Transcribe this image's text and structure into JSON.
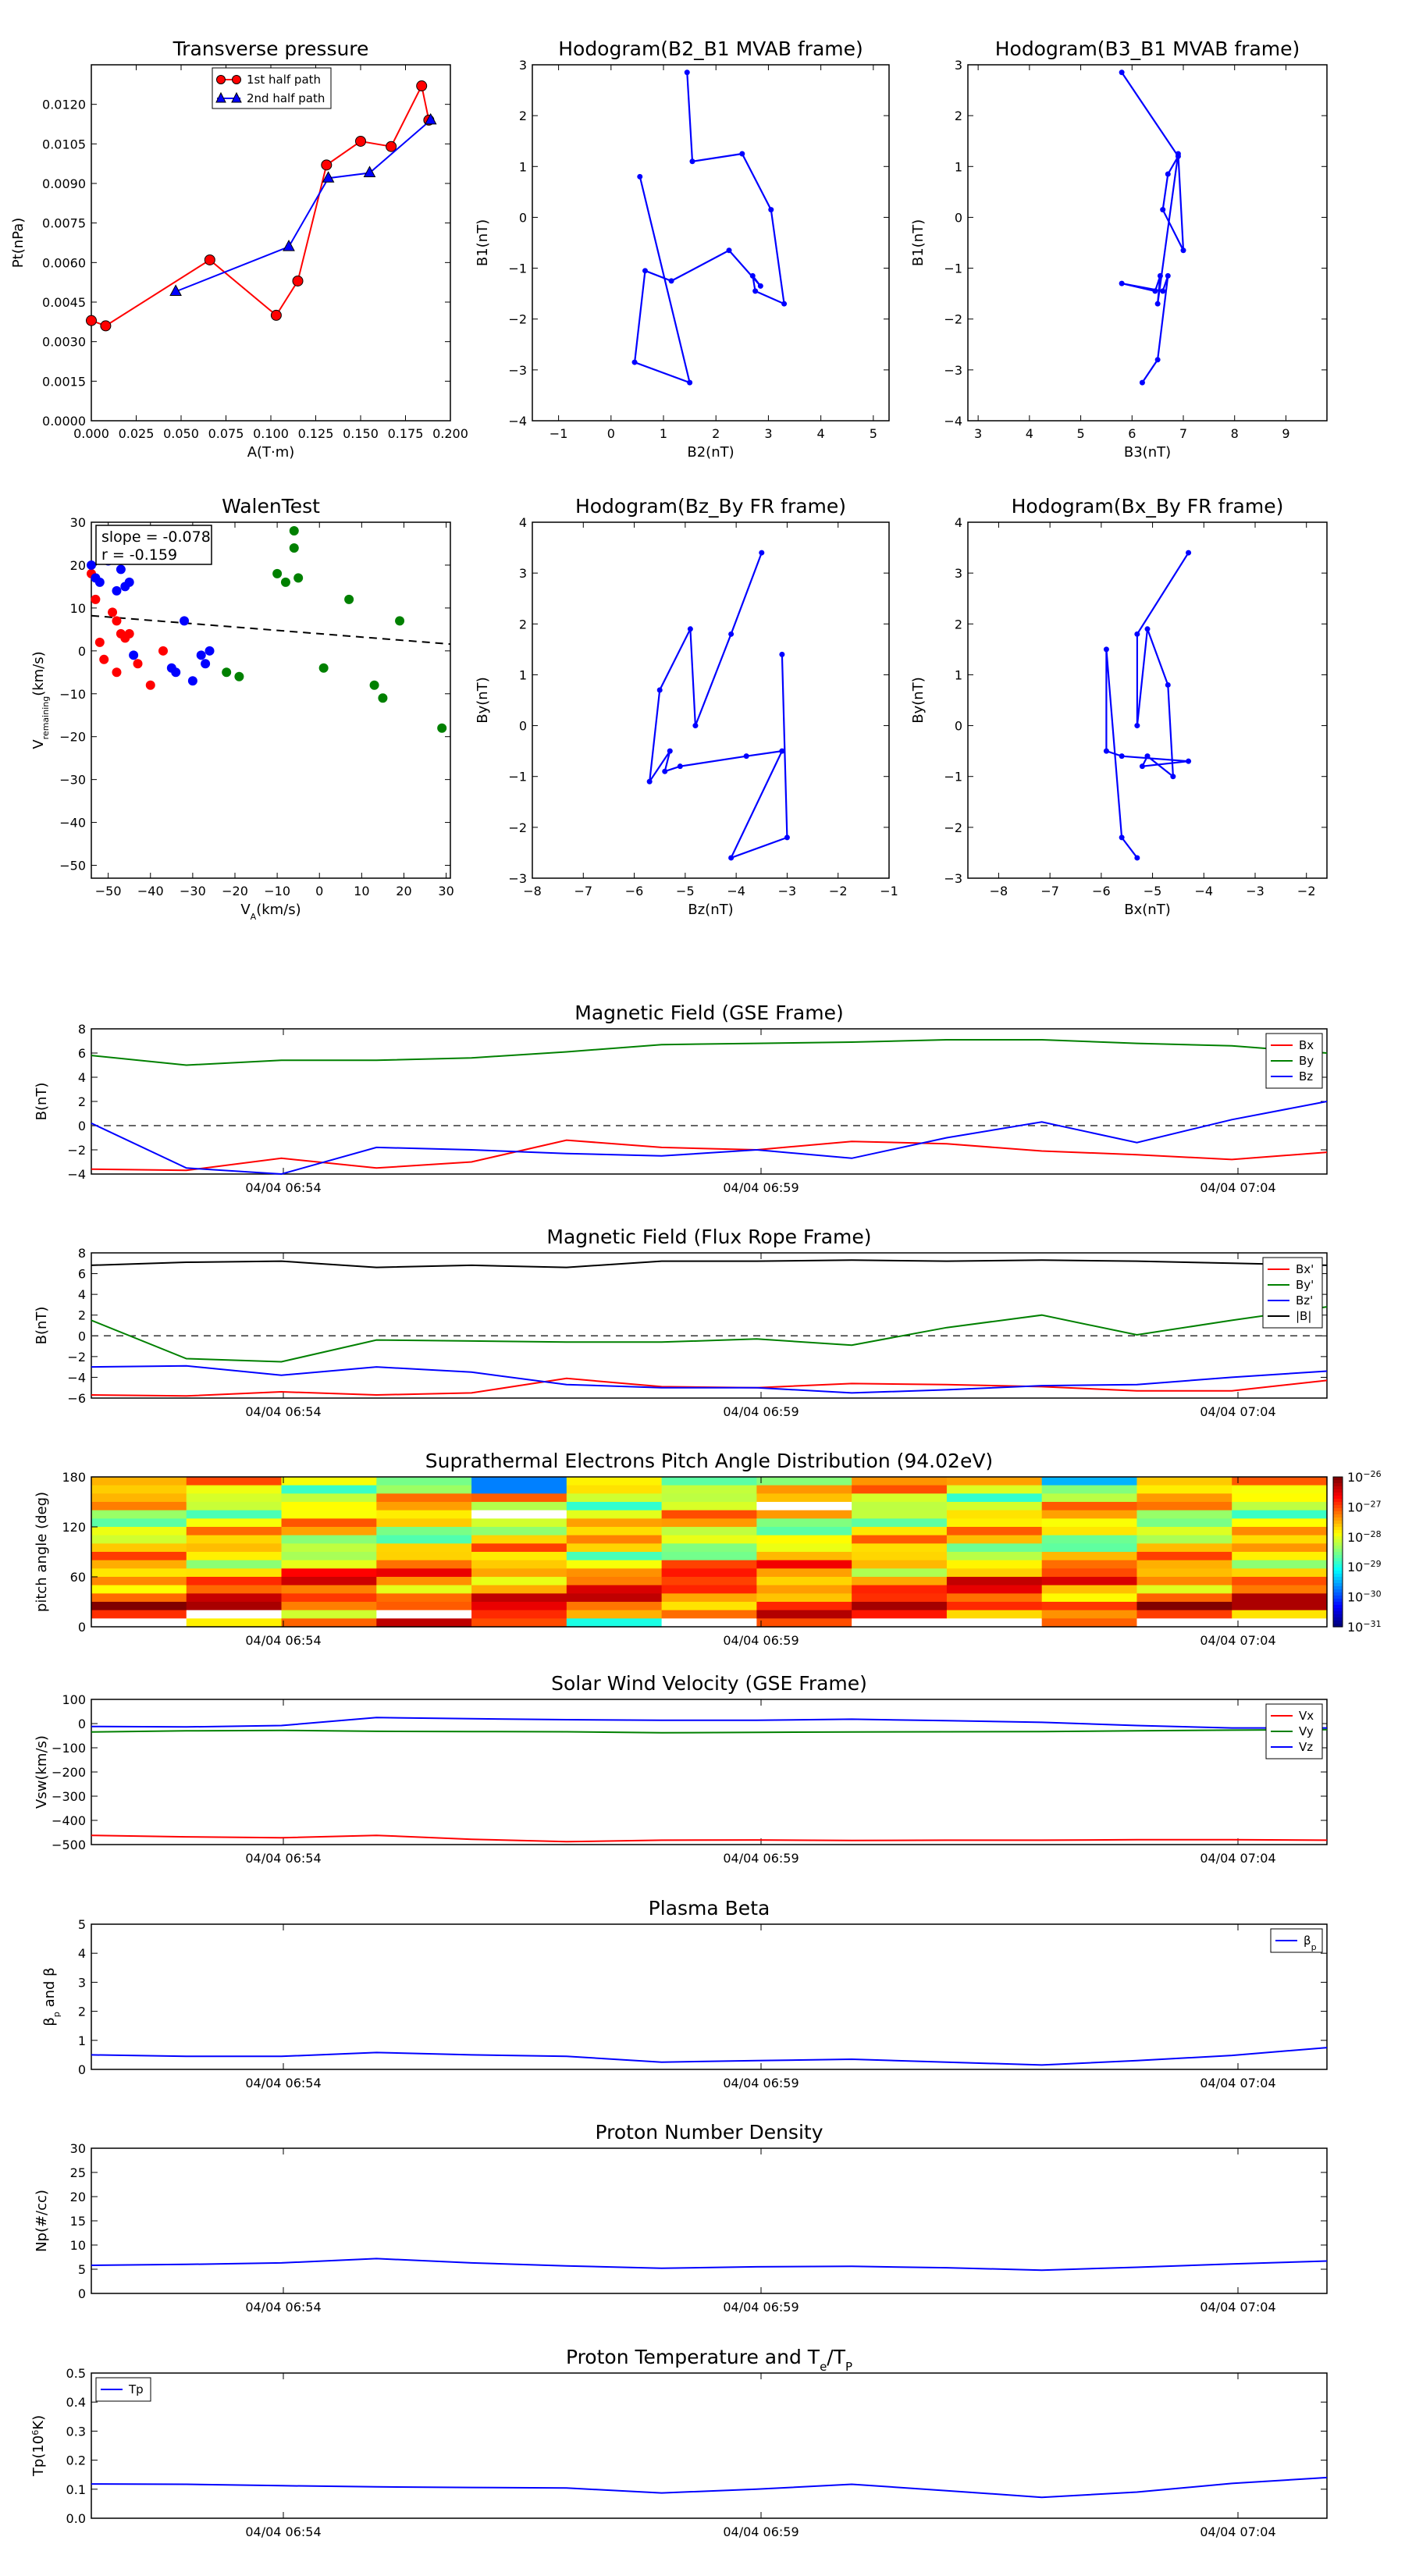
{
  "page": {
    "background": "#ffffff"
  },
  "panels": {
    "tp": {
      "title": "Transverse pressure",
      "xlabel": "A(T·m)",
      "ylabel": "Pt(nPa)",
      "xticks": [
        "0.000",
        "0.025",
        "0.050",
        "0.075",
        "0.100",
        "0.125",
        "0.150",
        "0.175",
        "0.200"
      ],
      "yticks": [
        "0.0000",
        "0.0015",
        "0.0030",
        "0.0045",
        "0.0060",
        "0.0075",
        "0.0090",
        "0.0105",
        "0.0120"
      ],
      "legend": [
        "1st half path",
        "2nd half path"
      ]
    },
    "h1": {
      "title": "Hodogram(B2_B1 MVAB frame)",
      "xlabel": "B2(nT)",
      "ylabel": "B1(nT)",
      "xticks": [
        "−1",
        "0",
        "1",
        "2",
        "3",
        "4",
        "5"
      ],
      "yticks": [
        "−4",
        "−3",
        "−2",
        "−1",
        "0",
        "1",
        "2",
        "3"
      ]
    },
    "h2": {
      "title": "Hodogram(B3_B1 MVAB frame)",
      "xlabel": "B3(nT)",
      "ylabel": "B1(nT)",
      "xticks": [
        "3",
        "4",
        "5",
        "6",
        "7",
        "8",
        "9"
      ],
      "yticks": [
        "−4",
        "−3",
        "−2",
        "−1",
        "0",
        "1",
        "2",
        "3"
      ]
    },
    "wt": {
      "title": "WalenTest",
      "xlabel": "V_A(km/s)",
      "ylabel": "V_remaining(km/s)",
      "xticks": [
        "−50",
        "−40",
        "−30",
        "−20",
        "−10",
        "0",
        "10",
        "20",
        "30"
      ],
      "yticks": [
        "−50",
        "−40",
        "−30",
        "−20",
        "−10",
        "0",
        "10",
        "20",
        "30"
      ],
      "annotation": [
        "slope = -0.078",
        "r = -0.159"
      ]
    },
    "h3": {
      "title": "Hodogram(Bz_By FR frame)",
      "xlabel": "Bz(nT)",
      "ylabel": "By(nT)",
      "xticks": [
        "−8",
        "−7",
        "−6",
        "−5",
        "−4",
        "−3",
        "−2",
        "−1"
      ],
      "yticks": [
        "−3",
        "−2",
        "−1",
        "0",
        "1",
        "2",
        "3",
        "4"
      ]
    },
    "h4": {
      "title": "Hodogram(Bx_By FR frame)",
      "xlabel": "Bx(nT)",
      "ylabel": "By(nT)",
      "xticks": [
        "−8",
        "−7",
        "−6",
        "−5",
        "−4",
        "−3",
        "−2"
      ],
      "yticks": [
        "−3",
        "−2",
        "−1",
        "0",
        "1",
        "2",
        "3",
        "4"
      ]
    },
    "ts1": {
      "title": "Magnetic Field (GSE Frame)",
      "ylabel": "B(nT)",
      "yticks": [
        "−4",
        "−2",
        "0",
        "2",
        "4",
        "6",
        "8"
      ],
      "legend": [
        "Bx",
        "By",
        "Bz"
      ]
    },
    "ts2": {
      "title": "Magnetic Field (Flux Rope Frame)",
      "ylabel": "B(nT)",
      "yticks": [
        "−6",
        "−4",
        "−2",
        "0",
        "2",
        "4",
        "6",
        "8"
      ],
      "legend": [
        "Bx'",
        "By'",
        "Bz'",
        "|B|"
      ]
    },
    "ts3": {
      "title": "Suprathermal Electrons Pitch Angle Distribution (94.02eV)",
      "ylabel": "pitch angle (deg)",
      "yticks": [
        "0",
        "60",
        "120",
        "180"
      ],
      "colorbar": [
        "10^-26",
        "10^-27",
        "10^-28",
        "10^-29",
        "10^-30",
        "10^-31"
      ]
    },
    "ts4": {
      "title": "Solar Wind Velocity (GSE Frame)",
      "ylabel": "Vsw(km/s)",
      "yticks": [
        "−500",
        "−400",
        "−300",
        "−200",
        "−100",
        "0",
        "100"
      ],
      "legend": [
        "Vx",
        "Vy",
        "Vz"
      ]
    },
    "ts5": {
      "title": "Plasma Beta",
      "ylabel": "β_p and β",
      "yticks": [
        "0",
        "1",
        "2",
        "3",
        "4",
        "5"
      ],
      "legend": [
        "β_p"
      ]
    },
    "ts6": {
      "title": "Proton Number Density",
      "ylabel": "Np(#/cc)",
      "yticks": [
        "0",
        "5",
        "10",
        "15",
        "20",
        "25",
        "30"
      ]
    },
    "ts7": {
      "title": "Proton Temperature and T_e/T_p",
      "ylabel": "Tp(10^6K)",
      "yticks": [
        "0.0",
        "0.1",
        "0.2",
        "0.3",
        "0.4",
        "0.5"
      ],
      "legend": [
        "Tp"
      ]
    },
    "time_ticks": [
      "04/04 06:54",
      "04/04 06:59",
      "04/04 07:04"
    ]
  },
  "colors": {
    "red": "#ff0000",
    "green": "#008000",
    "blue": "#0000ff",
    "black": "#000000",
    "dash": "#333333"
  },
  "chart_data": [
    {
      "type": "line",
      "title": "Transverse pressure",
      "xlabel": "A(T·m)",
      "ylabel": "Pt(nPa)",
      "xlim": [
        0.0,
        0.2
      ],
      "ylim": [
        0.0,
        0.0135
      ],
      "series": [
        {
          "name": "1st half path",
          "color": "#ff0000",
          "marker": "circle",
          "x": [
            0.0,
            0.008,
            0.066,
            0.103,
            0.115,
            0.131,
            0.15,
            0.167,
            0.184,
            0.188
          ],
          "y": [
            0.0038,
            0.0036,
            0.0061,
            0.004,
            0.0053,
            0.0097,
            0.0106,
            0.0104,
            0.0127,
            0.0114
          ]
        },
        {
          "name": "2nd half path",
          "color": "#0000ff",
          "marker": "triangle",
          "x": [
            0.047,
            0.11,
            0.132,
            0.155,
            0.189
          ],
          "y": [
            0.0049,
            0.0066,
            0.0092,
            0.0094,
            0.0114
          ]
        }
      ],
      "legend_position": "top-center"
    },
    {
      "type": "line",
      "title": "Hodogram(B2_B1 MVAB frame)",
      "xlabel": "B2(nT)",
      "ylabel": "B1(nT)",
      "xlim": [
        -1.5,
        5.3
      ],
      "ylim": [
        -4,
        3
      ],
      "series": [
        {
          "color": "#0000ff",
          "x": [
            1.45,
            1.55,
            2.5,
            3.05,
            3.3,
            2.75,
            2.7,
            2.85,
            2.25,
            1.15,
            0.65,
            0.45,
            1.5,
            0.55
          ],
          "y": [
            2.85,
            1.1,
            1.25,
            0.15,
            -1.7,
            -1.45,
            -1.15,
            -1.35,
            -0.65,
            -1.25,
            -1.05,
            -2.85,
            -3.25,
            0.8
          ]
        }
      ]
    },
    {
      "type": "line",
      "title": "Hodogram(B3_B1 MVAB frame)",
      "xlabel": "B3(nT)",
      "ylabel": "B1(nT)",
      "xlim": [
        2.8,
        9.8
      ],
      "ylim": [
        -4,
        3
      ],
      "series": [
        {
          "color": "#0000ff",
          "x": [
            5.8,
            6.9,
            6.7,
            6.6,
            7.0,
            6.9,
            6.5,
            6.55,
            6.45,
            5.8,
            6.6,
            6.7,
            6.5,
            6.2
          ],
          "y": [
            2.85,
            1.2,
            0.85,
            0.15,
            -0.65,
            1.25,
            -1.7,
            -1.15,
            -1.45,
            -1.3,
            -1.45,
            -1.15,
            -2.8,
            -3.25
          ]
        }
      ]
    },
    {
      "type": "scatter",
      "title": "WalenTest",
      "xlabel": "V_A(km/s)",
      "ylabel": "V_remaining(km/s)",
      "xlim": [
        -54,
        31
      ],
      "ylim": [
        -53,
        30
      ],
      "series": [
        {
          "color": "#ff0000",
          "x": [
            -54,
            -53,
            -52,
            -51,
            -49,
            -48,
            -48,
            -47,
            -46,
            -45,
            -43,
            -40,
            -37
          ],
          "y": [
            18,
            12,
            2,
            -2,
            9,
            7,
            -5,
            4,
            3,
            4,
            -3,
            -8,
            0
          ]
        },
        {
          "color": "#0000ff",
          "x": [
            -54,
            -53,
            -52,
            -50,
            -48,
            -47,
            -46,
            -45,
            -44,
            -35,
            -34,
            -32,
            -30,
            -28,
            -27,
            -26
          ],
          "y": [
            20,
            17,
            16,
            21,
            14,
            19,
            15,
            16,
            -1,
            -4,
            -5,
            7,
            -7,
            -1,
            -3,
            0
          ]
        },
        {
          "color": "#008000",
          "x": [
            -22,
            -19,
            -10,
            -8,
            -6,
            -6,
            -5,
            -4,
            1,
            7,
            13,
            15,
            19,
            29
          ],
          "y": [
            -5,
            -6,
            18,
            16,
            24,
            28,
            17,
            31,
            -4,
            12,
            -8,
            -11,
            7,
            -18
          ]
        }
      ],
      "fit_line": {
        "slope": -0.078,
        "intercept": 4.0,
        "style": "dashed"
      },
      "annotation": "slope = -0.078, r = -0.159"
    },
    {
      "type": "line",
      "title": "Hodogram(Bz_By FR frame)",
      "xlabel": "Bz(nT)",
      "ylabel": "By(nT)",
      "xlim": [
        -8,
        -1
      ],
      "ylim": [
        -3,
        4
      ],
      "series": [
        {
          "color": "#0000ff",
          "x": [
            -3.5,
            -4.1,
            -4.8,
            -4.9,
            -5.5,
            -5.7,
            -5.3,
            -5.4,
            -5.1,
            -3.8,
            -3.1,
            -4.1,
            -3.0,
            -3.1
          ],
          "y": [
            3.4,
            1.8,
            0.0,
            1.9,
            0.7,
            -1.1,
            -0.5,
            -0.9,
            -0.8,
            -0.6,
            -0.5,
            -2.6,
            -2.2,
            1.4
          ]
        }
      ]
    },
    {
      "type": "line",
      "title": "Hodogram(Bx_By FR frame)",
      "xlabel": "Bx(nT)",
      "ylabel": "By(nT)",
      "xlim": [
        -8.6,
        -1.6
      ],
      "ylim": [
        -3,
        4
      ],
      "series": [
        {
          "color": "#0000ff",
          "x": [
            -4.3,
            -5.3,
            -5.3,
            -5.1,
            -4.7,
            -4.6,
            -5.1,
            -5.2,
            -4.3,
            -5.6,
            -5.9,
            -5.9,
            -5.6,
            -5.3
          ],
          "y": [
            3.4,
            1.8,
            0.0,
            1.9,
            0.8,
            -1.0,
            -0.6,
            -0.8,
            -0.7,
            -0.6,
            -0.5,
            1.5,
            -2.2,
            -2.6
          ]
        }
      ]
    },
    {
      "type": "line",
      "title": "Magnetic Field (GSE Frame)",
      "ylabel": "B(nT)",
      "xlim": [
        0,
        13
      ],
      "ylim": [
        -4,
        8
      ],
      "categories": [
        "04/04 06:54",
        "04/04 06:59",
        "04/04 07:04"
      ],
      "x": [
        0,
        1,
        2,
        3,
        4,
        5,
        6,
        7,
        8,
        9,
        10,
        11,
        12,
        13
      ],
      "series": [
        {
          "name": "Bx",
          "color": "#ff0000",
          "values": [
            -3.6,
            -3.7,
            -2.7,
            -3.5,
            -3.0,
            -1.2,
            -1.8,
            -2.0,
            -1.3,
            -1.5,
            -2.1,
            -2.4,
            -2.8,
            -2.2
          ]
        },
        {
          "name": "By",
          "color": "#008000",
          "values": [
            5.8,
            5.0,
            5.4,
            5.4,
            5.6,
            6.1,
            6.7,
            6.8,
            6.9,
            7.1,
            7.1,
            6.8,
            6.6,
            6.0
          ]
        },
        {
          "name": "Bz",
          "color": "#0000ff",
          "values": [
            0.2,
            -3.5,
            -4.0,
            -1.8,
            -2.0,
            -2.3,
            -2.5,
            -2.0,
            -2.7,
            -1.0,
            0.3,
            -1.4,
            0.5,
            2.0
          ]
        }
      ],
      "zero_line": "dashed",
      "legend_position": "top-right"
    },
    {
      "type": "line",
      "title": "Magnetic Field (Flux Rope Frame)",
      "ylabel": "B(nT)",
      "xlim": [
        0,
        13
      ],
      "ylim": [
        -6,
        8
      ],
      "categories": [
        "04/04 06:54",
        "04/04 06:59",
        "04/04 07:04"
      ],
      "x": [
        0,
        1,
        2,
        3,
        4,
        5,
        6,
        7,
        8,
        9,
        10,
        11,
        12,
        13
      ],
      "series": [
        {
          "name": "Bx'",
          "color": "#ff0000",
          "values": [
            -5.7,
            -5.8,
            -5.4,
            -5.7,
            -5.5,
            -4.1,
            -4.9,
            -5.0,
            -4.6,
            -4.7,
            -4.9,
            -5.3,
            -5.3,
            -4.3
          ]
        },
        {
          "name": "By'",
          "color": "#008000",
          "values": [
            1.5,
            -2.2,
            -2.5,
            -0.4,
            -0.5,
            -0.6,
            -0.6,
            -0.3,
            -0.9,
            0.8,
            2.0,
            0.1,
            1.5,
            2.8
          ]
        },
        {
          "name": "Bz'",
          "color": "#0000ff",
          "values": [
            -3.0,
            -2.9,
            -3.8,
            -3.0,
            -3.5,
            -4.7,
            -5.0,
            -5.0,
            -5.5,
            -5.2,
            -4.8,
            -4.7,
            -4.0,
            -3.4
          ]
        },
        {
          "name": "|B|",
          "color": "#000000",
          "values": [
            6.8,
            7.1,
            7.2,
            6.6,
            6.8,
            6.6,
            7.2,
            7.2,
            7.3,
            7.2,
            7.3,
            7.2,
            7.0,
            6.8
          ]
        }
      ],
      "zero_line": "dashed",
      "legend_position": "top-right"
    },
    {
      "type": "heatmap",
      "title": "Suprathermal Electrons Pitch Angle Distribution (94.02eV)",
      "ylabel": "pitch angle (deg)",
      "ylim": [
        0,
        180
      ],
      "colorbar_range": [
        "10^-31",
        "10^-26"
      ],
      "columns": 13,
      "rows": 18,
      "color_scale": "jet"
    },
    {
      "type": "line",
      "title": "Solar Wind Velocity (GSE Frame)",
      "ylabel": "Vsw(km/s)",
      "xlim": [
        0,
        13
      ],
      "ylim": [
        -500,
        100
      ],
      "categories": [
        "04/04 06:54",
        "04/04 06:59",
        "04/04 07:04"
      ],
      "x": [
        0,
        1,
        2,
        3,
        4,
        5,
        6,
        7,
        8,
        9,
        10,
        11,
        12,
        13
      ],
      "series": [
        {
          "name": "Vx",
          "color": "#ff0000",
          "values": [
            -462,
            -468,
            -472,
            -462,
            -478,
            -488,
            -482,
            -481,
            -483,
            -482,
            -482,
            -480,
            -480,
            -482
          ]
        },
        {
          "name": "Vy",
          "color": "#008000",
          "values": [
            -35,
            -30,
            -28,
            -32,
            -33,
            -34,
            -38,
            -36,
            -35,
            -34,
            -33,
            -30,
            -27,
            -25
          ]
        },
        {
          "name": "Vz",
          "color": "#0000ff",
          "values": [
            -12,
            -14,
            -8,
            25,
            20,
            16,
            14,
            14,
            18,
            12,
            5,
            -8,
            -18,
            -18
          ]
        }
      ],
      "legend_position": "top-right"
    },
    {
      "type": "line",
      "title": "Plasma Beta",
      "ylabel": "β_p and β",
      "xlim": [
        0,
        13
      ],
      "ylim": [
        0,
        5
      ],
      "categories": [
        "04/04 06:54",
        "04/04 06:59",
        "04/04 07:04"
      ],
      "x": [
        0,
        1,
        2,
        3,
        4,
        5,
        6,
        7,
        8,
        9,
        10,
        11,
        12,
        13
      ],
      "series": [
        {
          "name": "β_p",
          "color": "#0000ff",
          "values": [
            0.5,
            0.45,
            0.45,
            0.58,
            0.5,
            0.45,
            0.25,
            0.3,
            0.35,
            0.25,
            0.15,
            0.3,
            0.48,
            0.75
          ]
        }
      ],
      "legend_position": "top-right"
    },
    {
      "type": "line",
      "title": "Proton Number Density",
      "ylabel": "Np(#/cc)",
      "xlim": [
        0,
        13
      ],
      "ylim": [
        0,
        30
      ],
      "categories": [
        "04/04 06:54",
        "04/04 06:59",
        "04/04 07:04"
      ],
      "x": [
        0,
        1,
        2,
        3,
        4,
        5,
        6,
        7,
        8,
        9,
        10,
        11,
        12,
        13
      ],
      "series": [
        {
          "values": [
            5.8,
            6.0,
            6.3,
            7.2,
            6.3,
            5.7,
            5.2,
            5.5,
            5.6,
            5.3,
            4.8,
            5.4,
            6.1,
            6.7
          ],
          "color": "#0000ff"
        }
      ]
    },
    {
      "type": "line",
      "title": "Proton Temperature and T_e/T_p",
      "ylabel": "Tp(10^6K)",
      "xlim": [
        0,
        13
      ],
      "ylim": [
        0,
        0.5
      ],
      "categories": [
        "04/04 06:54",
        "04/04 06:59",
        "04/04 07:04"
      ],
      "x": [
        0,
        1,
        2,
        3,
        4,
        5,
        6,
        7,
        8,
        9,
        10,
        11,
        12,
        13
      ],
      "series": [
        {
          "name": "Tp",
          "color": "#0000ff",
          "values": [
            0.118,
            0.117,
            0.112,
            0.108,
            0.106,
            0.104,
            0.087,
            0.1,
            0.117,
            0.095,
            0.072,
            0.09,
            0.12,
            0.14
          ]
        }
      ],
      "legend_position": "top-left"
    }
  ]
}
